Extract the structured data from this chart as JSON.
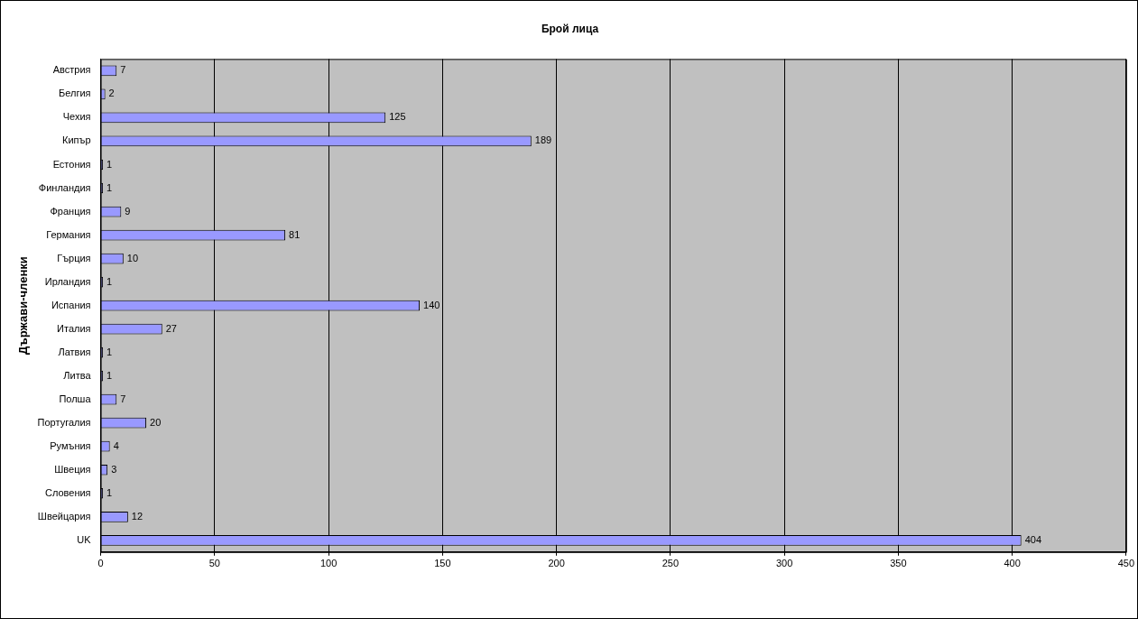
{
  "chart_data": {
    "type": "bar",
    "orientation": "horizontal",
    "title": "Брой лица",
    "ylabel": "Държави-членки",
    "categories": [
      "Австрия",
      "Белгия",
      "Чехия",
      "Кипър",
      "Естония",
      "Финландия",
      "Франция",
      "Германия",
      "Гърция",
      "Ирландия",
      "Испания",
      "Италия",
      "Латвия",
      "Литва",
      "Полша",
      "Португалия",
      "Румъния",
      "Швеция",
      "Словения",
      "Швейцария",
      "UK"
    ],
    "values": [
      7,
      2,
      125,
      189,
      1,
      1,
      9,
      81,
      10,
      1,
      140,
      27,
      1,
      1,
      7,
      20,
      4,
      3,
      1,
      12,
      404
    ],
    "color": "#9999ff",
    "data_labels": true,
    "xlim": [
      0,
      450
    ],
    "xticks": [
      0,
      50,
      100,
      150,
      200,
      250,
      300,
      350,
      400,
      450
    ],
    "grid": "x",
    "legend": false
  }
}
